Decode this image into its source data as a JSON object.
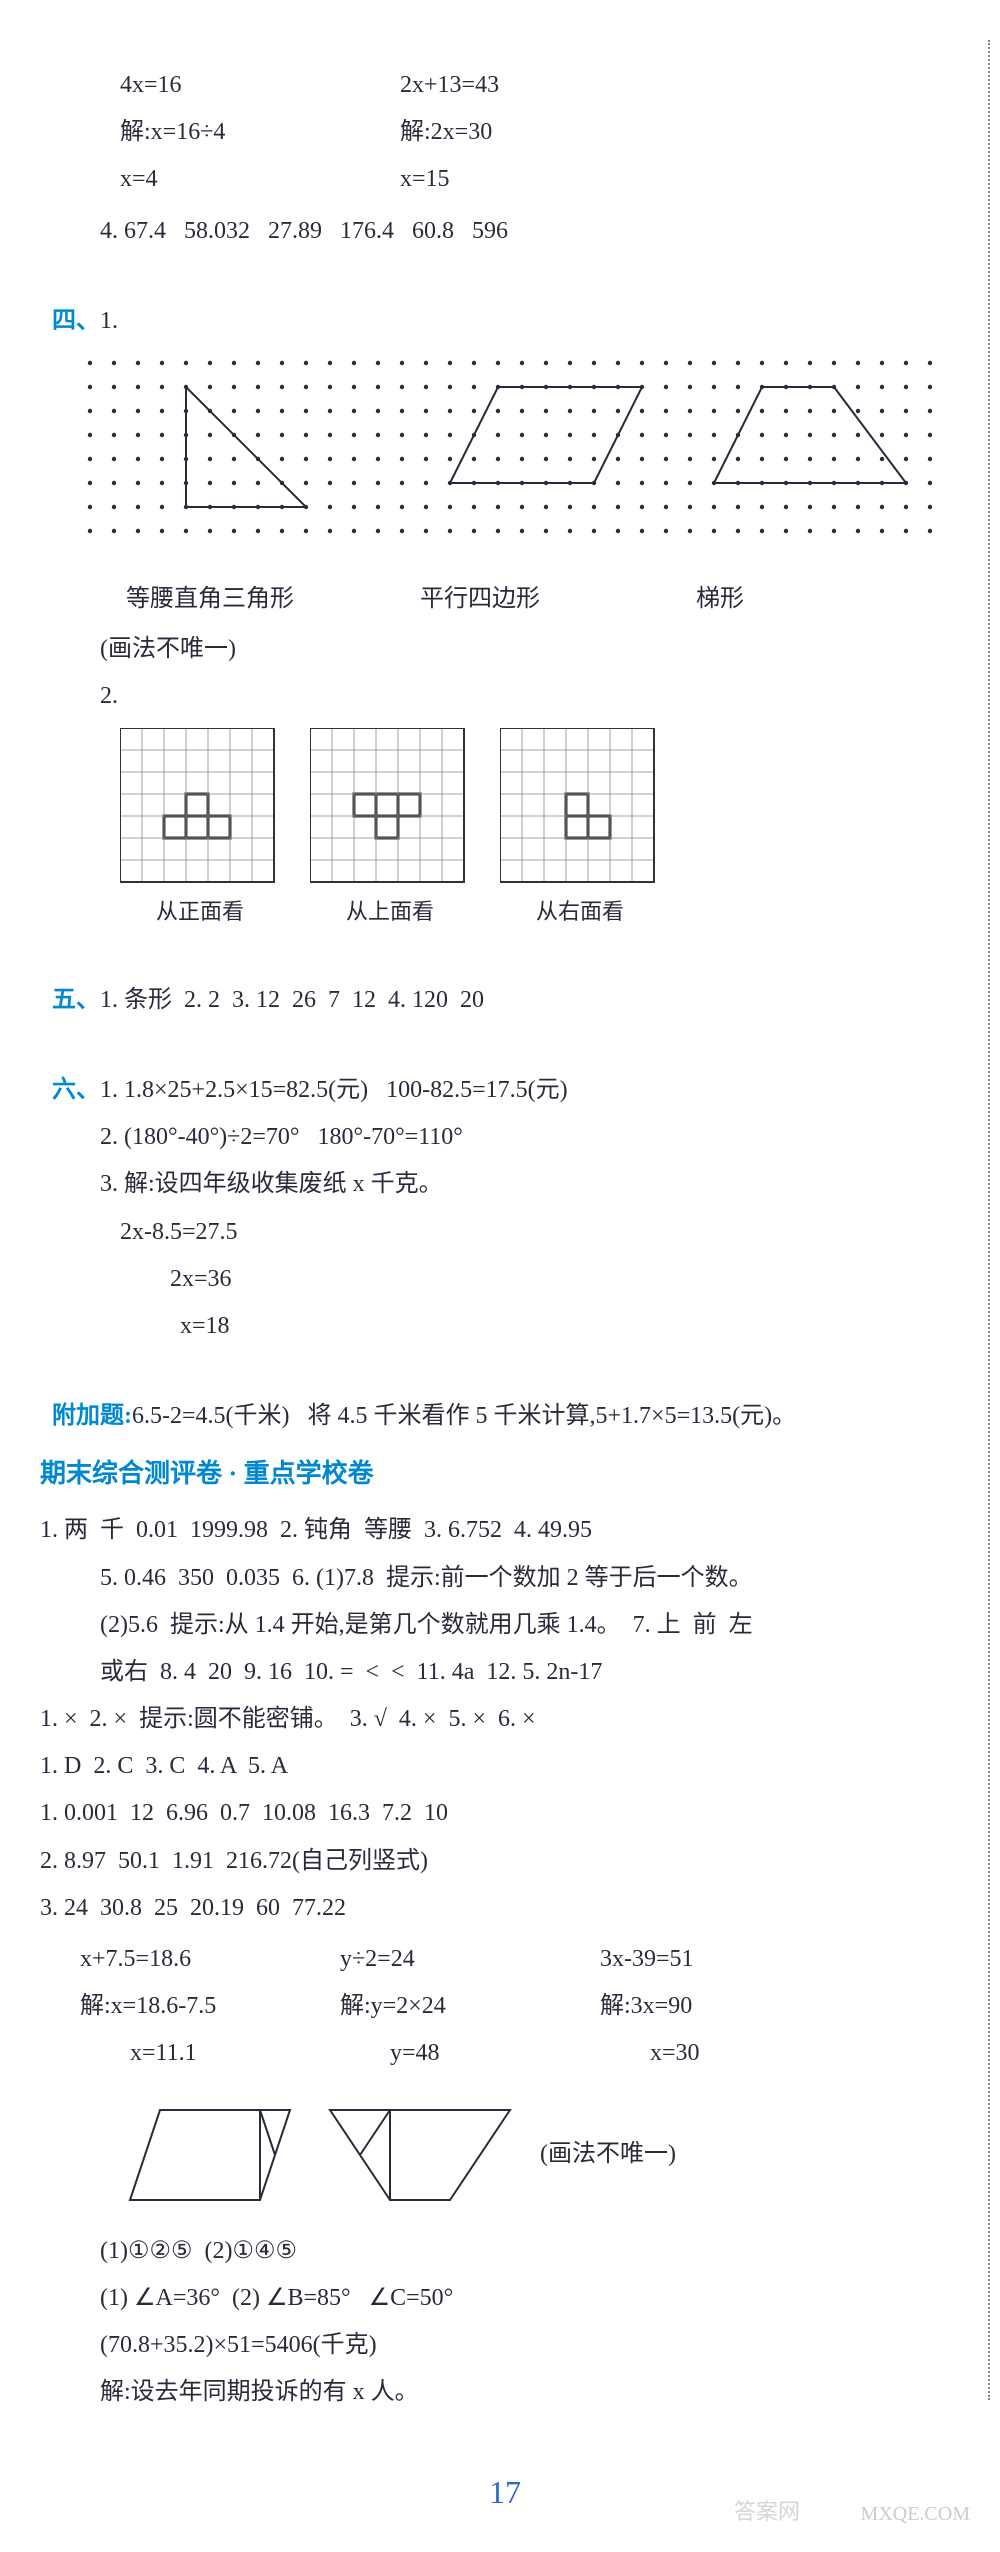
{
  "top": {
    "eq1_l1": "4x=16",
    "eq1_l2": "解:x=16÷4",
    "eq1_l3": "x=4",
    "eq2_l1": "2x+13=43",
    "eq2_l2": "解:2x=30",
    "eq2_l3": "x=15",
    "row4": "4. 67.4   58.032   27.89   176.4   60.8   596"
  },
  "sec4": {
    "label": "四、",
    "one": "1.",
    "shape1_label": "等腰直角三角形",
    "shape2_label": "平行四边形",
    "shape3_label": "梯形",
    "note": "(画法不唯一)",
    "two": "2.",
    "ortho1": "从正面看",
    "ortho2": "从上面看",
    "ortho3": "从右面看"
  },
  "sec5": {
    "label": "五、",
    "text": "1. 条形  2. 2  3. 12  26  7  12  4. 120  20"
  },
  "sec6": {
    "label": "六、",
    "l1": "1. 1.8×25+2.5×15=82.5(元)   100-82.5=17.5(元)",
    "l2": "2. (180°-40°)÷2=70°   180°-70°=110°",
    "l3": "3. 解:设四年级收集废纸 x 千克。",
    "l3a": "2x-8.5=27.5",
    "l3b": "2x=36",
    "l3c": "x=18",
    "add_label": "附加题:",
    "add_text": "6.5-2=4.5(千米)   将 4.5 千米看作 5 千米计算,5+1.7×5=13.5(元)。"
  },
  "heading2": "期末综合测评卷 · 重点学校卷",
  "bottom": {
    "l1": "1. 两  千  0.01  1999.98  2. 钝角  等腰  3. 6.752  4. 49.95",
    "l2": "5. 0.46  350  0.035  6. (1)7.8  提示:前一个数加 2 等于后一个数。",
    "l3": "(2)5.6  提示:从 1.4 开始,是第几个数就用几乘 1.4。  7. 上  前  左",
    "l4": "或右  8. 4  20  9. 16  10. =  <  <  11. 4a  12. 5. 2n-17",
    "l5": "1. ×  2. ×  提示:圆不能密铺。  3. √  4. ×  5. ×  6. ×",
    "l6": "1. D  2. C  3. C  4. A  5. A",
    "l7": "1. 0.001  12  6.96  0.7  10.08  16.3  7.2  10",
    "l8": "2. 8.97  50.1  1.91  216.72(自己列竖式)",
    "l9": "3. 24  30.8  25  20.19  60  77.22",
    "eq1_l1": "x+7.5=18.6",
    "eq1_l2": "解:x=18.6-7.5",
    "eq1_l3": "x=11.1",
    "eq2_l1": "y÷2=24",
    "eq2_l2": "解:y=2×24",
    "eq2_l3": "y=48",
    "eq3_l1": "3x-39=51",
    "eq3_l2": "解:3x=90",
    "eq3_l3": "x=30",
    "shape_note": "(画法不唯一)",
    "l10": "(1)①②⑤  (2)①④⑤",
    "l11": "(1) ∠A=36°  (2) ∠B=85°   ∠C=50°",
    "l12": "(70.8+35.2)×51=5406(千克)",
    "l13": "解:设去年同期投诉的有 x 人。"
  },
  "page_num": "17",
  "wm_text": "MXQE.COM",
  "wm_logo": "答案网",
  "colors": {
    "blue": "#0088d0",
    "text": "#2a2a3a",
    "grid": "#333333"
  },
  "dot_grid": {
    "cols": 36,
    "rows": 8,
    "spacing": 24,
    "triangle": [
      [
        4,
        6
      ],
      [
        4,
        1
      ],
      [
        9,
        6
      ]
    ],
    "parallelogram": [
      [
        15,
        5
      ],
      [
        17,
        1
      ],
      [
        23,
        1
      ],
      [
        21,
        5
      ]
    ],
    "trapezoid": [
      [
        26,
        5
      ],
      [
        28,
        1
      ],
      [
        31,
        1
      ],
      [
        34,
        5
      ]
    ]
  },
  "ortho_views": {
    "grid_size": 7,
    "cell": 22,
    "front_shaded": [
      [
        2,
        4
      ],
      [
        3,
        4
      ],
      [
        4,
        4
      ],
      [
        3,
        3
      ]
    ],
    "top_shaded": [
      [
        2,
        3
      ],
      [
        3,
        3
      ],
      [
        4,
        3
      ],
      [
        3,
        4
      ]
    ],
    "right_shaded": [
      [
        3,
        4
      ],
      [
        4,
        4
      ],
      [
        3,
        3
      ]
    ]
  }
}
